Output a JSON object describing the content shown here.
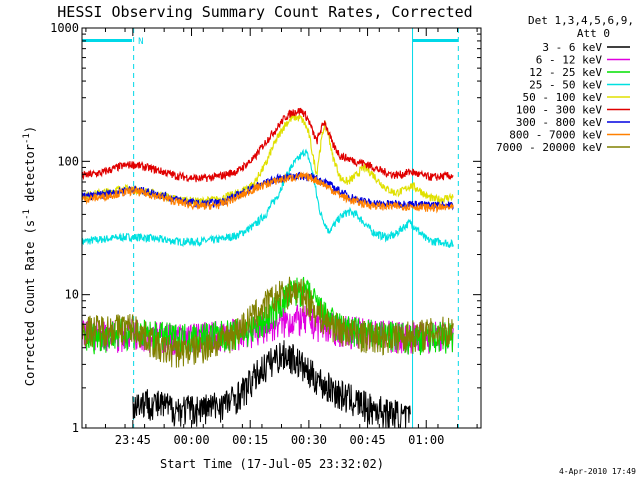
{
  "chart_data": {
    "type": "line",
    "title": "HESSI Observing Summary Count Rates, Corrected",
    "xlabel": "Start Time (17-Jul-05 23:32:02)",
    "ylabel": "Corrected Count Rate (s⁻¹ detector⁻¹)",
    "ylabel_main": "Corrected Count Rate (s",
    "ylabel_sup1": "-1",
    "ylabel_mid": " detector",
    "ylabel_sup2": "-1",
    "ylabel_end": ")",
    "x_unit": "minutes after 23:32:02",
    "xlim": [
      0,
      102
    ],
    "ylim": [
      1,
      1000
    ],
    "yscale": "log",
    "x_ticks": [
      {
        "x": 13,
        "label": "23:45"
      },
      {
        "x": 28,
        "label": "00:00"
      },
      {
        "x": 43,
        "label": "00:15"
      },
      {
        "x": 58,
        "label": "00:30"
      },
      {
        "x": 73,
        "label": "00:45"
      },
      {
        "x": 88,
        "label": "01:00"
      }
    ],
    "y_ticks": [
      {
        "y": 1,
        "label": "1"
      },
      {
        "y": 10,
        "label": "10"
      },
      {
        "y": 100,
        "label": "100"
      },
      {
        "y": 1000,
        "label": "1000"
      }
    ],
    "legend_header": [
      "Det 1,3,4,5,6,9,",
      "Att 0"
    ],
    "legend_position": "outside-right",
    "night_markers": [
      13.2,
      84.5
    ],
    "saa_markers": [
      96.2
    ],
    "night_bar_label": "N",
    "night_bar": [
      {
        "start": 0,
        "end": 12.8
      },
      {
        "start": 84.5,
        "end": 96.2
      }
    ],
    "footer_date": "4-Apr-2010 17:49",
    "series": [
      {
        "name": "3 - 6 keV",
        "color": "#000000",
        "x": [
          13,
          16,
          20,
          24,
          30,
          35,
          38,
          40,
          42,
          44,
          46,
          48,
          50,
          52,
          54,
          56,
          58,
          60,
          62,
          64,
          66,
          68,
          70,
          72,
          74,
          76,
          78,
          80,
          82,
          84
        ],
        "y": [
          1.5,
          1.6,
          1.5,
          1.4,
          1.4,
          1.5,
          1.6,
          1.8,
          2.0,
          2.4,
          2.8,
          3.1,
          3.5,
          3.6,
          3.4,
          3.0,
          2.6,
          2.4,
          2.1,
          2.0,
          1.8,
          1.7,
          1.6,
          1.5,
          1.4,
          1.4,
          1.3,
          1.3,
          1.2,
          1.2
        ]
      },
      {
        "name": "6 - 12 keV",
        "color": "#e000e0",
        "x": [
          0,
          5,
          10,
          13,
          18,
          24,
          30,
          35,
          40,
          44,
          47,
          50,
          53,
          55,
          57,
          59,
          62,
          65,
          68,
          72,
          76,
          80,
          85,
          90,
          95
        ],
        "y": [
          5.0,
          5.2,
          5.0,
          5.3,
          5.0,
          4.8,
          4.9,
          5.0,
          5.2,
          5.4,
          5.8,
          6.2,
          6.4,
          6.6,
          6.5,
          6.2,
          5.9,
          5.6,
          5.4,
          5.3,
          5.1,
          5.0,
          4.9,
          5.0,
          5.0
        ]
      },
      {
        "name": "12 - 25 keV",
        "color": "#00e000",
        "x": [
          0,
          5,
          10,
          13,
          18,
          24,
          30,
          35,
          40,
          44,
          47,
          50,
          52,
          54,
          56,
          58,
          60,
          62,
          65,
          68,
          72,
          76,
          80,
          85,
          90,
          95
        ],
        "y": [
          4.8,
          5.0,
          5.2,
          5.3,
          5.0,
          4.8,
          4.9,
          5.0,
          5.2,
          5.6,
          6.5,
          8.0,
          9.5,
          10.5,
          11.0,
          10.0,
          8.5,
          7.0,
          6.0,
          5.5,
          5.2,
          5.0,
          4.9,
          4.8,
          4.9,
          5.0
        ]
      },
      {
        "name": "25 - 50 keV",
        "color": "#00e0e0",
        "x": [
          0,
          5,
          10,
          15,
          20,
          25,
          30,
          35,
          40,
          44,
          47,
          50,
          52,
          54,
          56,
          57,
          58,
          59,
          60,
          61,
          62,
          63,
          64,
          66,
          68,
          70,
          72,
          74,
          76,
          78,
          80,
          82,
          84,
          86,
          88,
          90,
          92,
          94,
          95
        ],
        "y": [
          25,
          26,
          27,
          27,
          26,
          25,
          25,
          26,
          28,
          33,
          40,
          55,
          75,
          95,
          110,
          120,
          105,
          80,
          55,
          40,
          35,
          30,
          32,
          38,
          42,
          40,
          35,
          30,
          28,
          27,
          28,
          32,
          35,
          30,
          26,
          25,
          25,
          24,
          24
        ]
      },
      {
        "name": "50 - 100 keV",
        "color": "#e0e000",
        "x": [
          0,
          5,
          10,
          13,
          18,
          24,
          30,
          35,
          40,
          44,
          47,
          50,
          52,
          54,
          56,
          57,
          58,
          59,
          60,
          61,
          62,
          63,
          64,
          66,
          68,
          70,
          72,
          74,
          76,
          78,
          80,
          82,
          84,
          86,
          88,
          90,
          92,
          94,
          95
        ],
        "y": [
          55,
          58,
          62,
          62,
          58,
          52,
          50,
          52,
          58,
          68,
          95,
          150,
          190,
          215,
          210,
          190,
          160,
          110,
          80,
          130,
          190,
          160,
          110,
          75,
          70,
          78,
          90,
          82,
          70,
          62,
          58,
          60,
          66,
          62,
          55,
          52,
          52,
          54,
          54
        ]
      },
      {
        "name": "100 - 300 keV",
        "color": "#e00000",
        "x": [
          0,
          5,
          10,
          13,
          18,
          24,
          30,
          35,
          40,
          44,
          47,
          50,
          52,
          54,
          56,
          57,
          58,
          59,
          60,
          61,
          62,
          63,
          64,
          66,
          68,
          70,
          72,
          74,
          76,
          78,
          80,
          82,
          84,
          86,
          88,
          90,
          92,
          94,
          95
        ],
        "y": [
          78,
          82,
          92,
          95,
          88,
          78,
          74,
          77,
          85,
          105,
          140,
          180,
          215,
          235,
          240,
          225,
          200,
          165,
          140,
          170,
          200,
          165,
          135,
          110,
          105,
          100,
          97,
          92,
          86,
          82,
          79,
          80,
          84,
          80,
          77,
          76,
          77,
          78,
          78
        ]
      },
      {
        "name": "300 - 800 keV",
        "color": "#0000e0",
        "x": [
          0,
          5,
          10,
          13,
          18,
          24,
          30,
          35,
          40,
          45,
          50,
          55,
          58,
          60,
          62,
          65,
          68,
          72,
          76,
          80,
          84,
          88,
          92,
          95
        ],
        "y": [
          54,
          56,
          60,
          62,
          58,
          52,
          48,
          49,
          56,
          66,
          74,
          78,
          77,
          74,
          70,
          62,
          55,
          50,
          48,
          48,
          48,
          47,
          47,
          47
        ]
      },
      {
        "name": "800 - 7000 keV",
        "color": "#ff8000",
        "x": [
          0,
          5,
          10,
          13,
          18,
          24,
          30,
          35,
          40,
          45,
          50,
          55,
          58,
          60,
          62,
          65,
          68,
          72,
          76,
          80,
          84,
          88,
          92,
          95
        ],
        "y": [
          52,
          54,
          58,
          60,
          56,
          50,
          46,
          47,
          54,
          64,
          72,
          77,
          76,
          72,
          67,
          58,
          52,
          48,
          46,
          46,
          46,
          45,
          45,
          45
        ]
      },
      {
        "name": "7000 - 20000 keV",
        "color": "#808000",
        "x": [
          0,
          5,
          10,
          13,
          16,
          20,
          24,
          28,
          32,
          36,
          40,
          44,
          47,
          50,
          52,
          54,
          56,
          58,
          60,
          62,
          65,
          68,
          72,
          76,
          80,
          85,
          90,
          95
        ],
        "y": [
          5.5,
          5.6,
          5.7,
          5.8,
          5.0,
          4.0,
          3.8,
          3.9,
          4.2,
          4.6,
          5.5,
          7.0,
          8.5,
          9.8,
          10.5,
          11.0,
          10.5,
          9.0,
          7.5,
          6.5,
          5.8,
          5.3,
          5.0,
          4.8,
          4.9,
          5.1,
          5.3,
          5.5
        ]
      }
    ]
  }
}
